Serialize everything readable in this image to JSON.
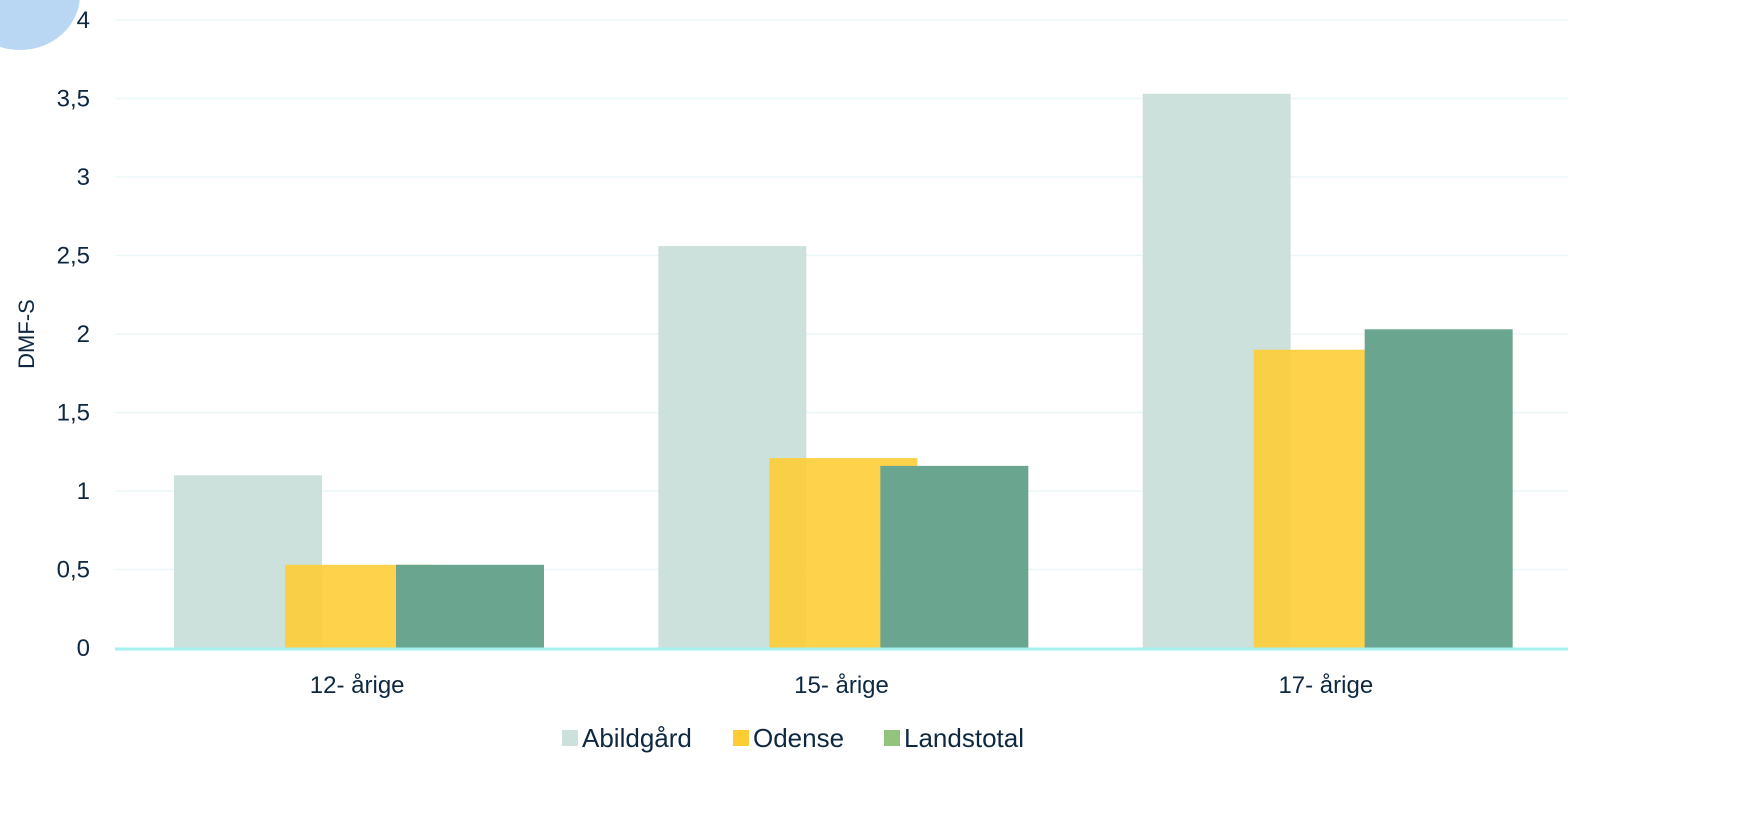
{
  "chart_data": {
    "type": "bar",
    "categories": [
      "12- årige",
      "15- årige",
      "17- årige"
    ],
    "series": [
      {
        "name": "Abildgård",
        "values": [
          1.1,
          2.56,
          3.53
        ],
        "color": "#cde1dc"
      },
      {
        "name": "Odense",
        "values": [
          0.53,
          1.21,
          1.9
        ],
        "color": "#ffcc33"
      },
      {
        "name": "Landstotal",
        "values": [
          0.53,
          1.16,
          2.03
        ],
        "color": "#6aa58f"
      }
    ],
    "legend_colors": [
      "#cde1dc",
      "#ffcc33",
      "#93c47d"
    ],
    "ylabel": "DMF-S",
    "xlabel": "",
    "ylim": [
      0,
      4
    ],
    "yticks": [
      "0",
      "0,5",
      "1",
      "1,5",
      "2",
      "2,5",
      "3",
      "3,5",
      "4"
    ],
    "grid": true,
    "legend_position": "bottom"
  }
}
